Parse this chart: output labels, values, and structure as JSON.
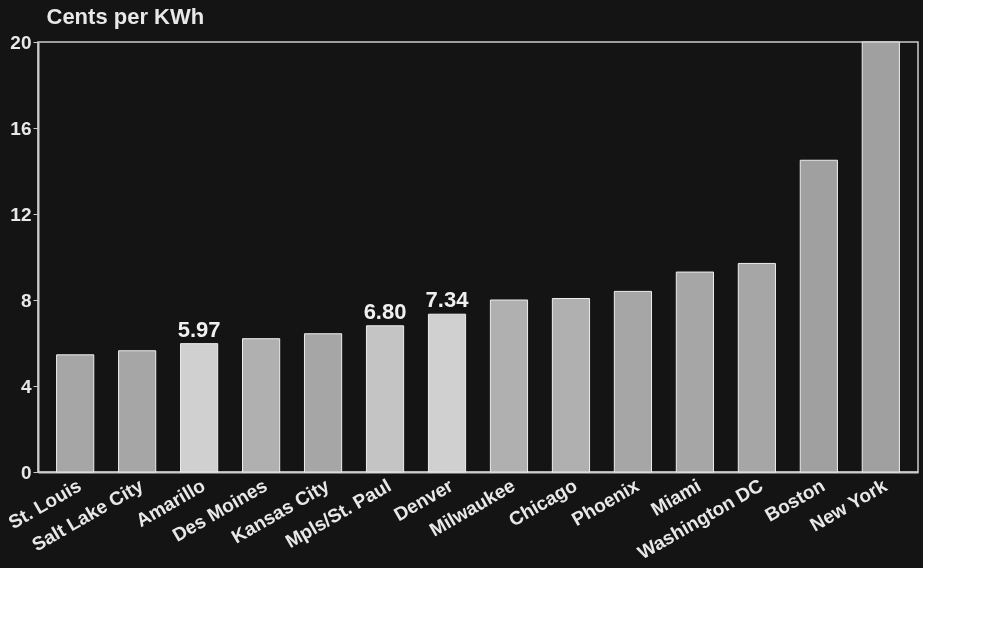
{
  "chart_data": {
    "type": "bar",
    "ylabel": "Cents per KWh",
    "categories": [
      "St. Louis",
      "Salt Lake City",
      "Amarillo",
      "Des Moines",
      "Kansas City",
      "Mpls/St. Paul",
      "Denver",
      "Milwaukee",
      "Chicago",
      "Phoenix",
      "Miami",
      "Washington DC",
      "Boston",
      "New York"
    ],
    "values": [
      5.45,
      5.64,
      5.97,
      6.2,
      6.43,
      6.8,
      7.34,
      8.0,
      8.07,
      8.4,
      9.3,
      9.7,
      14.5,
      20.0
    ],
    "value_labels": [
      null,
      null,
      "5.97",
      null,
      null,
      "6.80",
      "7.34",
      null,
      null,
      null,
      null,
      null,
      null,
      null
    ],
    "colors": [
      "#a6a6a6",
      "#a6a6a6",
      "#d0d0d0",
      "#b0b0b0",
      "#a6a6a6",
      "#c4c4c4",
      "#d0d0d0",
      "#b0b0b0",
      "#b0b0b0",
      "#a6a6a6",
      "#a6a6a6",
      "#a6a6a6",
      "#a0a0a0",
      "#a0a0a0"
    ],
    "ylim": [
      0,
      20
    ],
    "yticks": [
      0,
      4,
      8,
      12,
      16,
      20
    ]
  }
}
